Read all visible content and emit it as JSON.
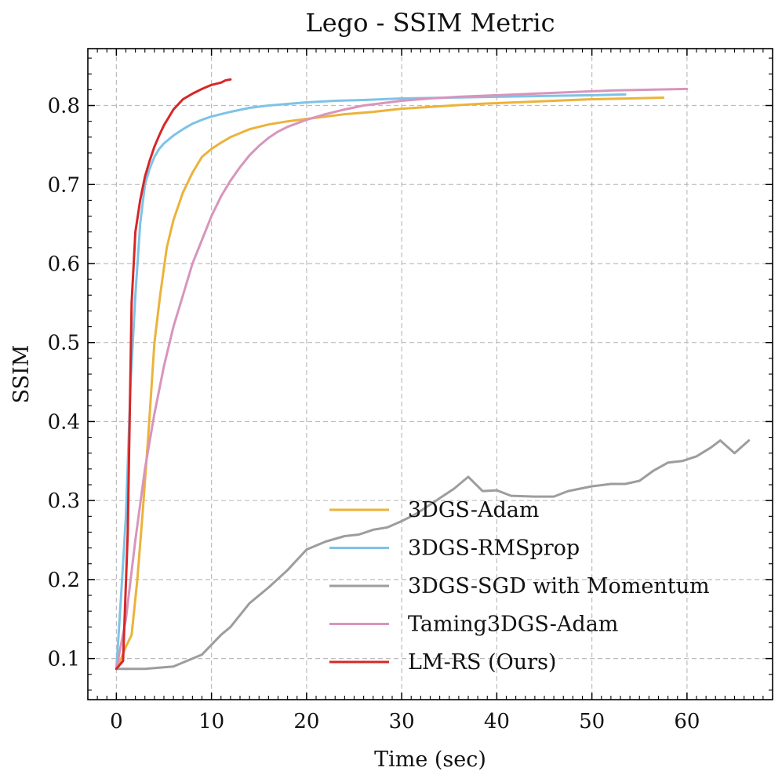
{
  "chart_data": {
    "type": "line",
    "title": "Lego - SSIM Metric",
    "xlabel": "Time (sec)",
    "ylabel": "SSIM",
    "xlim": [
      -3,
      69
    ],
    "ylim": [
      0.048,
      0.872
    ],
    "xticks": [
      0,
      10,
      20,
      30,
      40,
      50,
      60
    ],
    "xtick_labels": [
      "0",
      "10",
      "20",
      "30",
      "40",
      "50",
      "60"
    ],
    "yticks": [
      0.1,
      0.2,
      0.3,
      0.4,
      0.5,
      0.6,
      0.7,
      0.8
    ],
    "ytick_labels": [
      "0.1",
      "0.2",
      "0.3",
      "0.4",
      "0.5",
      "0.6",
      "0.7",
      "0.8"
    ],
    "grid": true,
    "legend_position": "lower-right",
    "series": [
      {
        "name": "3DGS-Adam",
        "color": "#EBB33A",
        "x": [
          0,
          0.5,
          1,
          1.6,
          2.2,
          2.8,
          3.4,
          4,
          4.6,
          5.3,
          6,
          7,
          8,
          9,
          10,
          11,
          12,
          13,
          14,
          15,
          16,
          17,
          18,
          20,
          22,
          24,
          27,
          30,
          34,
          38,
          42,
          46,
          50,
          54,
          57.5
        ],
        "y": [
          0.087,
          0.1,
          0.115,
          0.13,
          0.2,
          0.29,
          0.39,
          0.5,
          0.56,
          0.62,
          0.655,
          0.69,
          0.715,
          0.735,
          0.745,
          0.753,
          0.76,
          0.765,
          0.77,
          0.773,
          0.776,
          0.778,
          0.78,
          0.783,
          0.786,
          0.789,
          0.792,
          0.796,
          0.799,
          0.802,
          0.804,
          0.806,
          0.808,
          0.809,
          0.81
        ]
      },
      {
        "name": "3DGS-RMSprop",
        "color": "#7EC3E6",
        "x": [
          0,
          0.5,
          1,
          1.5,
          2,
          2.5,
          3,
          3.5,
          4,
          4.5,
          5,
          6,
          7,
          8,
          9,
          10,
          12,
          14,
          16,
          18,
          20,
          23,
          26,
          30,
          35,
          40,
          45,
          50,
          53.5
        ],
        "y": [
          0.087,
          0.18,
          0.28,
          0.45,
          0.56,
          0.65,
          0.7,
          0.72,
          0.735,
          0.745,
          0.752,
          0.762,
          0.77,
          0.777,
          0.782,
          0.786,
          0.792,
          0.797,
          0.8,
          0.802,
          0.804,
          0.806,
          0.807,
          0.809,
          0.81,
          0.811,
          0.812,
          0.813,
          0.814
        ]
      },
      {
        "name": "3DGS-SGD with Momentum",
        "color": "#9D9D9D",
        "x": [
          0,
          3,
          6,
          9,
          11,
          12,
          14,
          16,
          18,
          20,
          22,
          24,
          25.5,
          27,
          28.5,
          30,
          31.5,
          33,
          35.5,
          37,
          38.5,
          40,
          41.5,
          44,
          46,
          47.5,
          50,
          52,
          53.5,
          55,
          56.5,
          58,
          59.5,
          61,
          62.5,
          63.5,
          65,
          66.5
        ],
        "y": [
          0.087,
          0.087,
          0.09,
          0.105,
          0.13,
          0.14,
          0.17,
          0.19,
          0.212,
          0.238,
          0.248,
          0.255,
          0.257,
          0.263,
          0.266,
          0.274,
          0.283,
          0.295,
          0.315,
          0.33,
          0.312,
          0.313,
          0.306,
          0.305,
          0.305,
          0.312,
          0.318,
          0.321,
          0.321,
          0.325,
          0.338,
          0.348,
          0.35,
          0.356,
          0.367,
          0.376,
          0.36,
          0.376
        ]
      },
      {
        "name": "Taming3DGS-Adam",
        "color": "#D895BC",
        "x": [
          0,
          1,
          2,
          3,
          4,
          5,
          6,
          7,
          8,
          9,
          10,
          11,
          12,
          13,
          14,
          15,
          16,
          17,
          18,
          20,
          22,
          24,
          26,
          28,
          30,
          33,
          36,
          40,
          44,
          48,
          52,
          56,
          60
        ],
        "y": [
          0.087,
          0.15,
          0.25,
          0.34,
          0.41,
          0.47,
          0.52,
          0.56,
          0.6,
          0.63,
          0.66,
          0.685,
          0.705,
          0.722,
          0.737,
          0.749,
          0.759,
          0.767,
          0.773,
          0.782,
          0.789,
          0.795,
          0.8,
          0.803,
          0.806,
          0.809,
          0.811,
          0.813,
          0.815,
          0.817,
          0.819,
          0.82,
          0.821
        ]
      },
      {
        "name": "LM-RS (Ours)",
        "color": "#D62728",
        "x": [
          0,
          0.7,
          1.2,
          1.6,
          2,
          2.5,
          3,
          3.5,
          4,
          4.5,
          5,
          5.5,
          6,
          7,
          8,
          9,
          10,
          11,
          11.5,
          12
        ],
        "y": [
          0.087,
          0.097,
          0.26,
          0.55,
          0.64,
          0.68,
          0.71,
          0.73,
          0.748,
          0.762,
          0.775,
          0.785,
          0.795,
          0.808,
          0.815,
          0.821,
          0.826,
          0.829,
          0.832,
          0.833
        ]
      }
    ]
  }
}
